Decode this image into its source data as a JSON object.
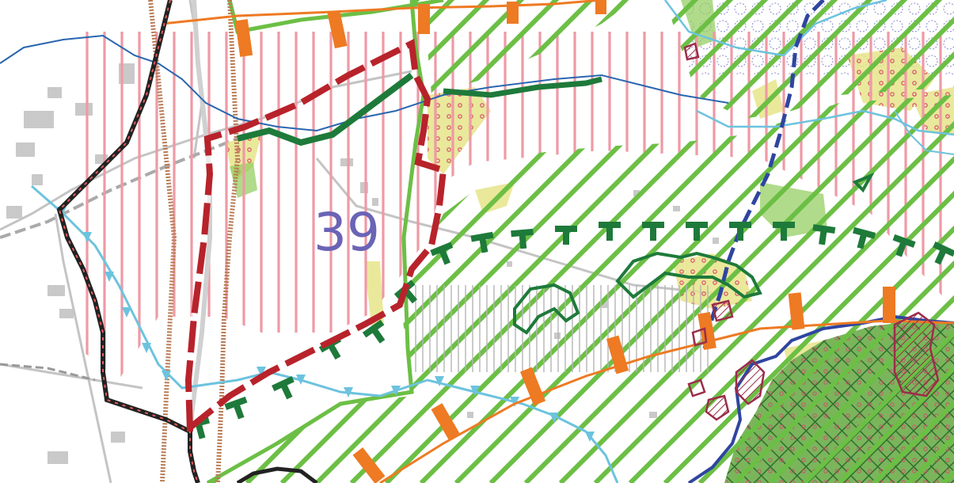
{
  "map": {
    "zone_number": "39",
    "colors": {
      "background": "#ffffff",
      "green_hatch": "#6cbf45",
      "dark_green": "#1e7a3a",
      "pink_hatch": "#ee9aa5",
      "red_boundary": "#b8232b",
      "orange_line": "#ee7a23",
      "blue_river": "#2a66b0",
      "light_blue_line": "#6cc3de",
      "navy_line": "#2f45a0",
      "brown_rail": "#b97c55",
      "yellow_area": "#e6e58a",
      "label_purple": "#6b63b5"
    }
  }
}
